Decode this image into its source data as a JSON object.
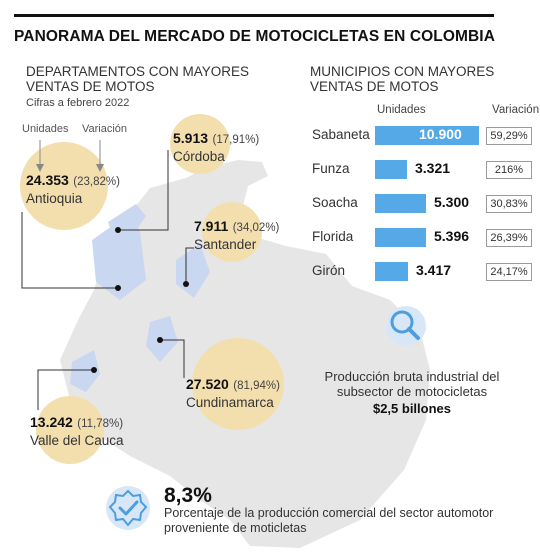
{
  "title": "PANORAMA DEL MERCADO DE MOTOCICLETAS EN COLOMBIA",
  "departments": {
    "title": "DEPARTAMENTOS CON MAYORES VENTAS DE MOTOS",
    "subtitle": "Cifras a febrero 2022",
    "legend_units": "Unidades",
    "legend_variation": "Variación"
  },
  "municipalities": {
    "title": "MUNICIPIOS CON MAYORES VENTAS DE MOTOS",
    "col_units": "Unidades",
    "col_variation": "Variación"
  },
  "chart_data": [
    {
      "type": "bar",
      "title": "MUNICIPIOS CON MAYORES VENTAS DE MOTOS",
      "categories": [
        "Sabaneta",
        "Funza",
        "Soacha",
        "Florida",
        "Girón"
      ],
      "values": [
        10900,
        3321,
        5300,
        5396,
        3417
      ],
      "value_labels": [
        "10.900",
        "3.321",
        "5.300",
        "5.396",
        "3.417"
      ],
      "variation_labels": [
        "59,29%",
        "216%",
        "30,83%",
        "26,39%",
        "24,17%"
      ],
      "xlabel": "Unidades",
      "orientation": "horizontal"
    },
    {
      "type": "scatter",
      "title": "DEPARTAMENTOS CON MAYORES VENTAS DE MOTOS",
      "subtitle": "Cifras a febrero 2022",
      "categories": [
        "Antioquia",
        "Córdoba",
        "Santander",
        "Cundinamarca",
        "Valle del Cauca"
      ],
      "values": [
        24353,
        5913,
        7911,
        27520,
        13242
      ],
      "value_labels": [
        "24.353",
        "5.913",
        "7.911",
        "27.520",
        "13.242"
      ],
      "variation_labels": [
        "(23,82%)",
        "(17,91%)",
        "(34,02%)",
        "(81,94%)",
        "(11,78%)"
      ]
    }
  ],
  "production": {
    "text": "Producción bruta industrial del subsector de motocicletas",
    "value": "$2,5 billones"
  },
  "highlight": {
    "value": "8,3%",
    "description": "Porcentaje de la producción comercial del sector automotor proveniente de moticletas"
  },
  "colors": {
    "bar": "#55a9e7",
    "bubble": "#f3dfae",
    "map": "#e6e6e6",
    "map_highlight": "#c9d7f1",
    "icon": "#4d9de0"
  }
}
